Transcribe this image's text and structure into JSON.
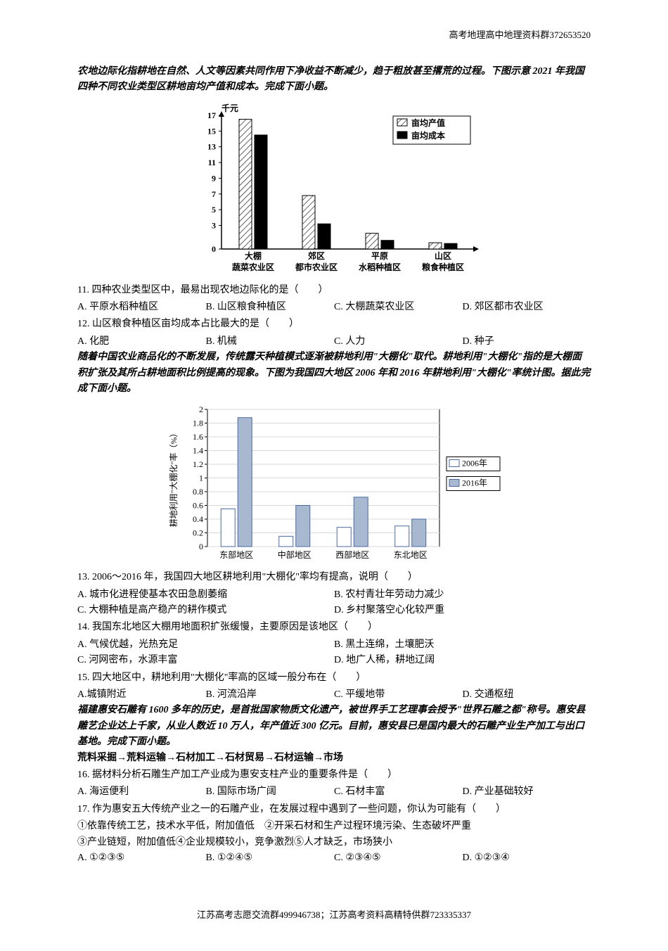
{
  "header_right": "高考地理高中地理资料群372653520",
  "intro1": "农地边际化指耕地在自然、人文等因素共同作用下净收益不断减少，趋于粗放甚至撂荒的过程。下图示意 2021 年我国四种不同农业类型区耕地亩均产值和成本。完成下面小题。",
  "chart1": {
    "type": "bar",
    "y_label": "千元",
    "y_ticks": [
      "0",
      "3",
      "5",
      "7",
      "9",
      "11",
      "13",
      "15",
      "17"
    ],
    "y_max": 17,
    "categories_top": [
      "大棚",
      "郊区",
      "平原",
      "山区"
    ],
    "categories_bottom": [
      "蔬菜农业区",
      "都市农业区",
      "水稻种植区",
      "粮食种植区"
    ],
    "legend": [
      {
        "label": "亩均产值",
        "hatch": true,
        "color": "#ffffff",
        "border": "#000000"
      },
      {
        "label": "亩均成本",
        "hatch": false,
        "color": "#000000",
        "border": "#000000"
      }
    ],
    "series_produce": [
      16.5,
      6.8,
      2.0,
      0.8
    ],
    "series_cost": [
      14.5,
      3.2,
      1.1,
      0.7
    ],
    "bg": "#ffffff",
    "grid": "#c0c0c0",
    "axis": "#000000",
    "font_size": 12
  },
  "q11": {
    "stem": "11. 四种农业类型区中，最易出现农地边际化的是（　　）",
    "opts": [
      "A. 平原水稻种植区",
      "B. 山区粮食种植区",
      "C. 大棚蔬菜农业区",
      "D. 郊区都市农业区"
    ]
  },
  "q12": {
    "stem": "12. 山区粮食种植区亩均成本占比最大的是（　　）",
    "opts": [
      "A. 化肥",
      "B. 机械",
      "C. 人力",
      "D. 种子"
    ]
  },
  "intro2": "随着中国农业商品化的不断发展，传统露天种植模式逐渐被耕地利用\"大棚化\"取代。耕地利用\"大棚化\"指的是大棚面积扩张及其所占耕地面积比例提高的现象。下图为我国四大地区 2006 年和 2016 年耕地利用\"大棚化\"率统计图。据此完成下面小题。",
  "chart2": {
    "type": "bar",
    "y_label": "耕地利用\"大棚化\"率（%）",
    "y_ticks": [
      "0",
      "0.2",
      "0.4",
      "0.6",
      "0.8",
      "1",
      "1.2",
      "1.4",
      "1.6",
      "1.8",
      "2"
    ],
    "y_max": 2.0,
    "categories": [
      "东部地区",
      "中部地区",
      "西部地区",
      "东北地区"
    ],
    "legend": [
      {
        "label": "2006年",
        "color": "#ffffff",
        "border": "#4a6aa0"
      },
      {
        "label": "2016年",
        "color": "#a8b8d0",
        "border": "#4a6aa0"
      }
    ],
    "series_2006": [
      0.55,
      0.15,
      0.28,
      0.3
    ],
    "series_2016": [
      1.88,
      0.6,
      0.72,
      0.4
    ],
    "bg": "#ffffff",
    "grid": "#d8d8d8",
    "axis": "#000000",
    "font_size": 12
  },
  "q13": {
    "stem": "13. 2006～2016 年，我国四大地区耕地利用\"大棚化\"率均有提高，说明（　　）",
    "opts": [
      "A. 城市化进程使基本农田急剧萎缩",
      "B. 农村青壮年劳动力减少",
      "C. 大棚种植是高产稳产的耕作模式",
      "D. 乡村聚落空心化较严重"
    ]
  },
  "q14": {
    "stem": "14. 我国东北地区大棚用地面积扩张缓慢，主要原因是该地区（　　）",
    "opts": [
      "A. 气候优越，光热充足",
      "B. 黑土连绵，土壤肥沃",
      "C. 河网密布，水源丰富",
      "D. 地广人稀，耕地辽阔"
    ]
  },
  "q15": {
    "stem": "15. 四大地区中，耕地利用\"大棚化\"率高的区域一般分布在（　　）",
    "opts": [
      "A.城镇附近",
      "B. 河流沿岸",
      "C. 平缓地带",
      "D. 交通枢纽"
    ]
  },
  "intro3": "福建惠安石雕有 1600 多年的历史，是首批国家物质文化遗产，被世界手工艺理事会授予\"世界石雕之都\"称号。惠安县雕艺企业达上千家，从业人数近 10 万人，年产值近 300 亿元。目前，惠安县已是国内最大的石雕产业生产加工与出口基地。完成下面小题。",
  "chain": "荒料采掘→荒料运输→石材加工→石材贸易→石材运输→市场",
  "q16": {
    "stem": "16. 据材料分析石雕生产加工产业成为惠安支柱产业的重要条件是（　　）",
    "opts": [
      "A. 海运便利",
      "B. 国际市场广阔",
      "C. 石材丰富",
      "D. 产业基础较好"
    ]
  },
  "q17": {
    "stem": "17. 作为惠安五大传统产业之一的石雕产业，在发展过程中遇到了一些问题，你认为可能有（　　）",
    "lines": [
      "①依靠传统工艺，技术水平低，附加值低　②开采石材和生产过程环境污染、生态破坏严重",
      "③产业链短，附加值低④企业规模较小，竞争激烈⑤人才缺乏，市场狭小"
    ],
    "opts": [
      "A. ①②③⑤",
      "B. ①②④⑤",
      "C. ②③④⑤",
      "D. ①②③④"
    ]
  },
  "footer": "江苏高考志愿交流群499946738；江苏高考资料高精特供群723335337"
}
